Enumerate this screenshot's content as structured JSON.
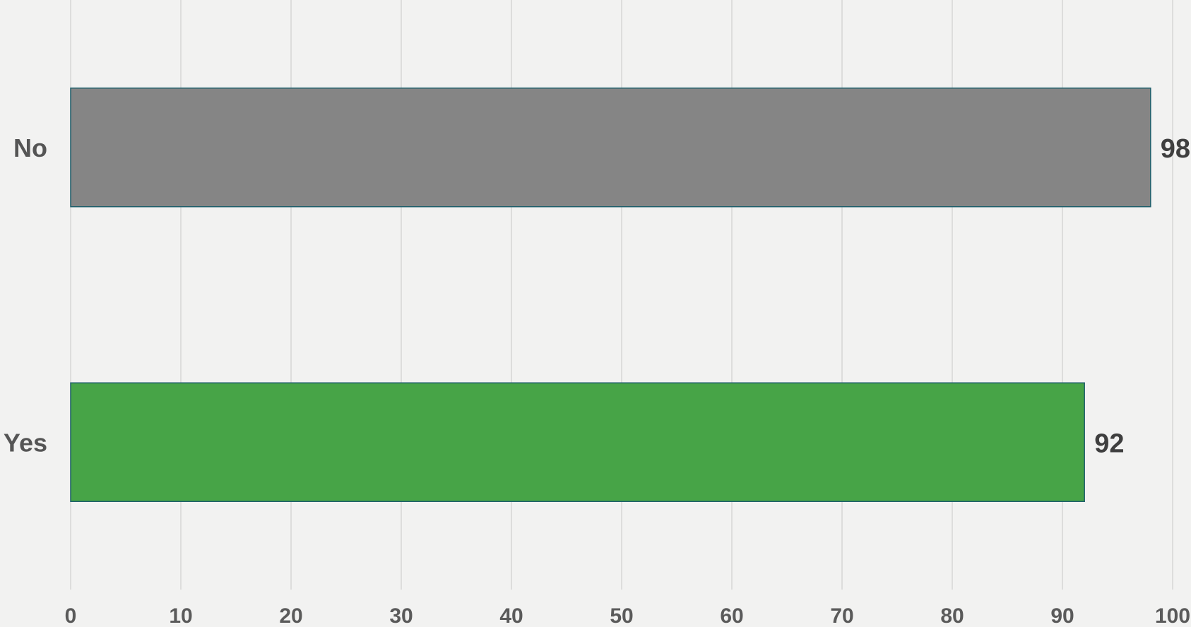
{
  "chart_data": {
    "type": "bar",
    "orientation": "horizontal",
    "categories": [
      "No",
      "Yes"
    ],
    "values": [
      98,
      92
    ],
    "colors": [
      "#858585",
      "#47a447"
    ],
    "border_color": "#1f5f6b",
    "xlim": [
      0,
      100
    ],
    "xticks": [
      0,
      10,
      20,
      30,
      40,
      50,
      60,
      70,
      80,
      90,
      100
    ],
    "grid": true,
    "data_labels": true,
    "title": "",
    "xlabel": "",
    "ylabel": ""
  }
}
